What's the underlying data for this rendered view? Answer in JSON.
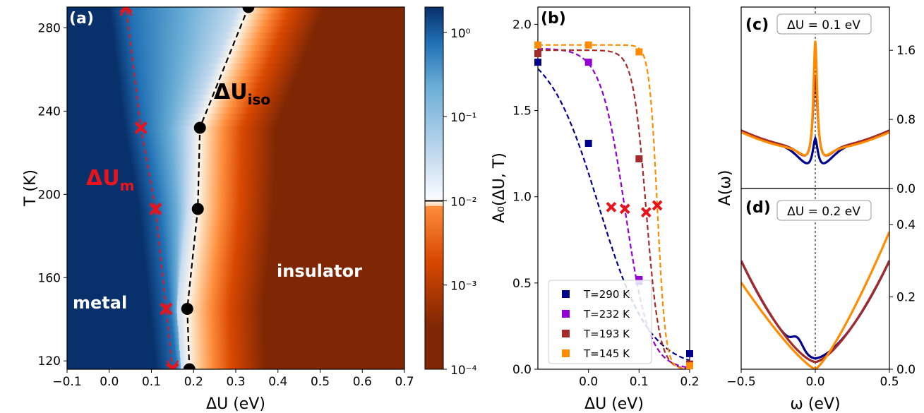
{
  "chart_data": [
    {
      "id": "a",
      "type": "heatmap",
      "panel_label": "(a)",
      "xlabel": "ΔU (eV)",
      "ylabel": "T (K)",
      "xlim": [
        -0.1,
        0.7
      ],
      "ylim": [
        116,
        290
      ],
      "xticks": [
        "−0.1",
        "0.0",
        "0.1",
        "0.2",
        "0.3",
        "0.4",
        "0.5",
        "0.6",
        "0.7"
      ],
      "xtick_values": [
        -0.1,
        0.0,
        0.1,
        0.2,
        0.3,
        0.4,
        0.5,
        0.6,
        0.7
      ],
      "yticks": [
        "120",
        "160",
        "200",
        "240",
        "280"
      ],
      "ytick_values": [
        120,
        160,
        200,
        240,
        280
      ],
      "colorbar": {
        "scale": "log",
        "range": [
          0.0001,
          2
        ],
        "ticks": [
          1,
          0.1,
          0.01,
          0.001,
          0.0001
        ],
        "tick_labels": [
          "10⁰",
          "10⁻¹",
          "10⁻²",
          "10⁻³",
          "10⁻⁴"
        ],
        "marked_level": 0.01,
        "colors": [
          "#7f2704",
          "#d94801",
          "#fd8d3c",
          "#fdd0a2",
          "#fdf6ee",
          "#f7fbff",
          "#c6dbef",
          "#6baed6",
          "#2171b5",
          "#08306b"
        ]
      },
      "iso_curve": {
        "label": "ΔU",
        "sub": "iso",
        "color": "#000000",
        "points": [
          [
            0.19,
            116
          ],
          [
            0.185,
            145
          ],
          [
            0.21,
            193
          ],
          [
            0.215,
            232
          ],
          [
            0.33,
            290
          ]
        ]
      },
      "metal_curve": {
        "label": "ΔU",
        "sub": "m",
        "color": "#e8141c",
        "points": [
          [
            0.15,
            116
          ],
          [
            0.135,
            145
          ],
          [
            0.11,
            193
          ],
          [
            0.075,
            232
          ],
          [
            0.04,
            290
          ]
        ]
      },
      "region_labels": {
        "metal": "metal",
        "insulator": "insulator"
      }
    },
    {
      "id": "b",
      "type": "line",
      "panel_label": "(b)",
      "xlabel": "ΔU (eV)",
      "ylabel": "A₀(ΔU, T)",
      "xlim": [
        -0.1,
        0.2
      ],
      "ylim": [
        0,
        2.1
      ],
      "xticks": [
        "0.0",
        "0.1",
        "0.2"
      ],
      "xtick_values": [
        0.0,
        0.1,
        0.2
      ],
      "yticks": [
        "0.0",
        "0.5",
        "1.0",
        "1.5",
        "2.0"
      ],
      "ytick_values": [
        0.0,
        0.5,
        1.0,
        1.5,
        2.0
      ],
      "legend_position": "lower-left",
      "series": [
        {
          "name": "T=290 K",
          "color": "#00008b",
          "max": 1.9,
          "x0": 0.02,
          "w": 0.05,
          "markers": [
            [
              -0.1,
              1.78
            ],
            [
              0.0,
              1.31
            ],
            [
              0.1,
              0.51
            ],
            [
              0.2,
              0.09
            ]
          ],
          "cross": [
            0.045,
            0.94
          ]
        },
        {
          "name": "T=232 K",
          "color": "#9400d3",
          "max": 1.86,
          "x0": 0.072,
          "w": 0.024,
          "markers": [
            [
              0.0,
              1.78
            ],
            [
              0.1,
              0.52
            ]
          ],
          "cross": [
            0.072,
            0.93
          ]
        },
        {
          "name": "T=193 K",
          "color": "#a52a2a",
          "max": 1.85,
          "x0": 0.114,
          "w": 0.013,
          "markers": [
            [
              -0.1,
              1.83
            ],
            [
              0.1,
              1.22
            ],
            [
              0.2,
              0.03
            ]
          ],
          "cross": [
            0.114,
            0.91
          ]
        },
        {
          "name": "T=145 K",
          "color": "#ff8c00",
          "max": 1.88,
          "x0": 0.136,
          "w": 0.008,
          "markers": [
            [
              -0.1,
              1.88
            ],
            [
              0.0,
              1.88
            ],
            [
              0.1,
              1.84
            ],
            [
              0.2,
              0.02
            ]
          ],
          "cross": [
            0.136,
            0.95
          ]
        }
      ]
    },
    {
      "id": "c",
      "type": "line",
      "panel_label": "(c)",
      "annotation": "ΔU = 0.1 eV",
      "xlim": [
        -0.5,
        0.5
      ],
      "ylim": [
        0,
        2.1
      ],
      "yticks": [
        "0.0",
        "0.8",
        "1.6"
      ],
      "ytick_values": [
        0.0,
        0.8,
        1.6
      ],
      "series": [
        {
          "color": "#00008b",
          "base": 0.5,
          "depth": 0.27,
          "gw": 0.09,
          "peak": 0.35,
          "pw": 0.022
        },
        {
          "color": "#a52a2a",
          "base": 0.5,
          "depth": 0.24,
          "gw": 0.08,
          "peak": 1.05,
          "pw": 0.02
        },
        {
          "color": "#ff8c00",
          "base": 0.48,
          "depth": 0.22,
          "gw": 0.07,
          "peak": 1.45,
          "pw": 0.016
        }
      ]
    },
    {
      "id": "d",
      "type": "line",
      "panel_label": "(d)",
      "annotation": "ΔU = 0.2 eV",
      "xlabel": "ω (eV)",
      "ylabel": "A(ω)",
      "xlim": [
        -0.5,
        0.5
      ],
      "ylim": [
        0,
        0.5
      ],
      "xticks": [
        "−0.5",
        "0.0",
        "0.5"
      ],
      "xtick_values": [
        -0.5,
        0.0,
        0.5
      ],
      "yticks": [
        "0.0",
        "0.2",
        "0.4"
      ],
      "ytick_values": [
        0.0,
        0.2,
        0.4
      ],
      "series": [
        {
          "color": "#00008b",
          "edge": 0.3,
          "min": 0.03,
          "p": 1.6,
          "wobble": 0.03
        },
        {
          "color": "#a52a2a",
          "edge": 0.3,
          "min": 0.02,
          "p": 1.5,
          "wobble": 0.0
        },
        {
          "color": "#ff8c00",
          "edge": 0.38,
          "min": 0.0,
          "p": 1.25,
          "wobble": 0.0,
          "asym": -0.14
        }
      ]
    }
  ]
}
